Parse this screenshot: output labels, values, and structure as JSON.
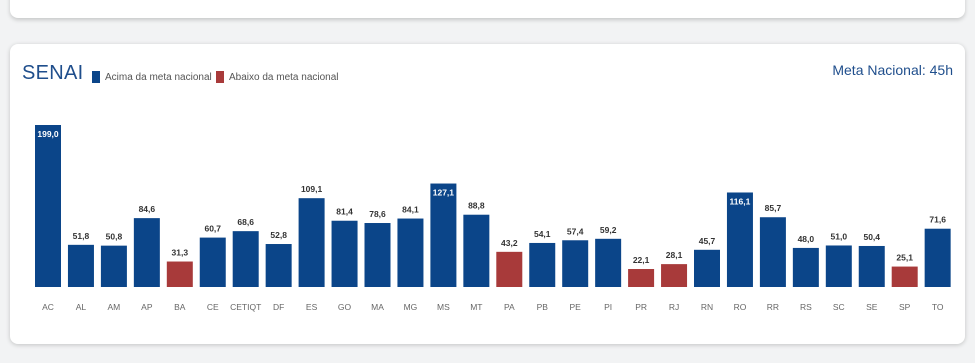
{
  "chart_data": {
    "type": "bar",
    "title": "SENAI",
    "annotation": "Meta Nacional: 45h",
    "legend": [
      {
        "label": "Acima da meta nacional",
        "color": "#0b4589"
      },
      {
        "label": "Abaixo da meta nacional",
        "color": "#a83a3a"
      }
    ],
    "legend_position": "top-left",
    "grid": false,
    "target": 45,
    "categories": [
      "AC",
      "AL",
      "AM",
      "AP",
      "BA",
      "CE",
      "CETIQT",
      "DF",
      "ES",
      "GO",
      "MA",
      "MG",
      "MS",
      "MT",
      "PA",
      "PB",
      "PE",
      "PI",
      "PR",
      "RJ",
      "RN",
      "RO",
      "RR",
      "RS",
      "SC",
      "SE",
      "SP",
      "TO"
    ],
    "values": [
      199.0,
      51.8,
      50.8,
      84.6,
      31.3,
      60.7,
      68.6,
      52.8,
      109.1,
      81.4,
      78.6,
      84.1,
      127.1,
      88.8,
      43.2,
      54.1,
      57.4,
      59.2,
      22.1,
      28.1,
      45.7,
      116.1,
      85.7,
      48.0,
      51.0,
      50.4,
      25.1,
      71.6
    ],
    "value_labels": [
      "199,0",
      "51,8",
      "50,8",
      "84,6",
      "31,3",
      "60,7",
      "68,6",
      "52,8",
      "109,1",
      "81,4",
      "78,6",
      "84,1",
      "127,1",
      "88,8",
      "43,2",
      "54,1",
      "57,4",
      "59,2",
      "22,1",
      "28,1",
      "45,7",
      "116,1",
      "85,7",
      "48,0",
      "51,0",
      "50,4",
      "25,1",
      "71,6"
    ],
    "inside_label_categories": [
      "AC",
      "MS",
      "RO"
    ],
    "ylim": [
      0,
      199
    ]
  }
}
